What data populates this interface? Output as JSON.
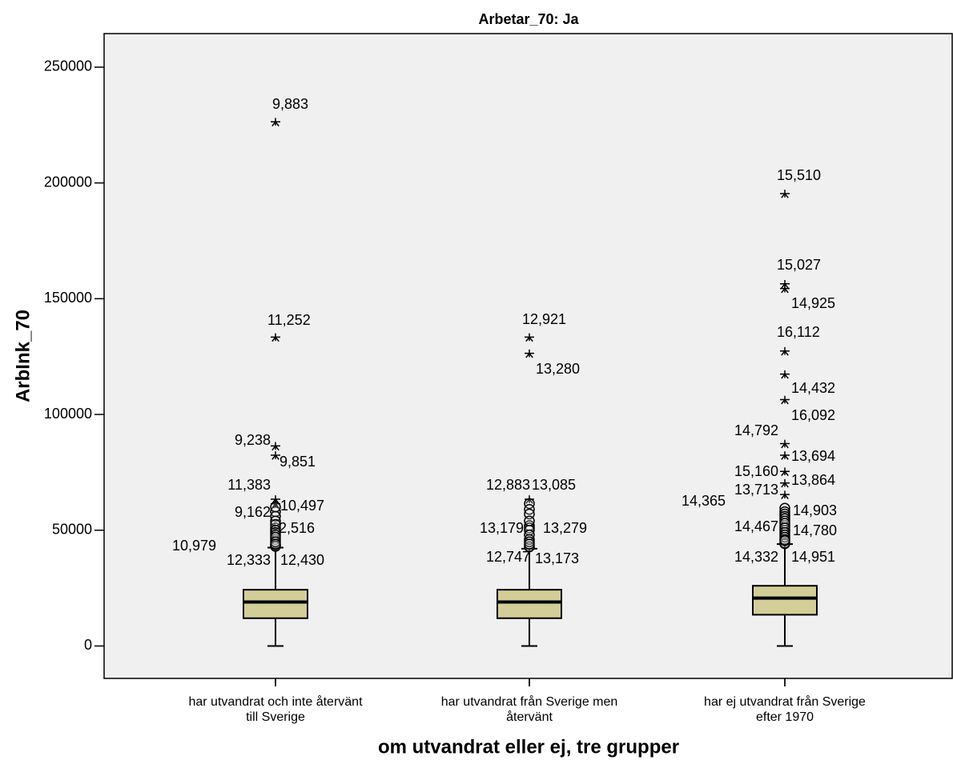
{
  "chart_data": {
    "type": "box",
    "title": "Arbetar_70: Ja",
    "y_label": "ArbInk_70",
    "x_label": "om utvandrat eller ej, tre grupper",
    "categories": [
      [
        "har utvandrat och inte återvänt",
        "till Sverige"
      ],
      [
        "har utvandrat från Sverige men",
        "återvänt"
      ],
      [
        "har ej utvandrat från Sverige",
        "efter 1970"
      ]
    ],
    "color": "#d3ce97",
    "ylim": [
      -14000,
      264500
    ],
    "yticks": [
      0,
      50000,
      100000,
      150000,
      200000,
      250000
    ],
    "boxes": [
      {
        "min": 0,
        "q1": 12000,
        "median": 19000,
        "q3": 24300,
        "max": 42500,
        "outliers": [
          {
            "value": 226000,
            "label": "9,883",
            "marker": "star"
          },
          {
            "value": 133000,
            "label": "11,252",
            "marker": "star"
          },
          {
            "value": 86000,
            "label": "9,238",
            "marker": "star"
          },
          {
            "value": 82000,
            "label": "9,851",
            "marker": "star"
          },
          {
            "value": 63000,
            "label": "11,383",
            "marker": "star"
          },
          {
            "value": 61000,
            "label": "10,497",
            "marker": "star"
          },
          {
            "value": 58000,
            "label": "9,162",
            "marker": "circle"
          },
          {
            "value": 51000,
            "label": "12,516",
            "marker": "circle"
          },
          {
            "value": 46000,
            "label": "10,979",
            "marker": "circle"
          },
          {
            "value": 43500,
            "label": "12,333",
            "marker": "circle"
          },
          {
            "value": 43000,
            "label": "12,430",
            "marker": "circle"
          },
          {
            "value": 60000,
            "marker": "circle"
          },
          {
            "value": 56000,
            "marker": "circle"
          },
          {
            "value": 54000,
            "marker": "circle"
          },
          {
            "value": 52500,
            "marker": "circle"
          },
          {
            "value": 50000,
            "marker": "circle"
          },
          {
            "value": 49000,
            "marker": "circle"
          },
          {
            "value": 48000,
            "marker": "circle"
          },
          {
            "value": 47000,
            "marker": "circle"
          },
          {
            "value": 45000,
            "marker": "circle"
          },
          {
            "value": 44000,
            "marker": "circle"
          }
        ]
      },
      {
        "min": 0,
        "q1": 12000,
        "median": 19000,
        "q3": 24300,
        "max": 42000,
        "outliers": [
          {
            "value": 133000,
            "label": "12,921",
            "marker": "star"
          },
          {
            "value": 126000,
            "label": "13,280",
            "marker": "star"
          },
          {
            "value": 63000,
            "label": "12,883",
            "marker": "star"
          },
          {
            "value": 61500,
            "label": "13,085",
            "marker": "circle"
          },
          {
            "value": 52000,
            "label": "13,179",
            "marker": "circle"
          },
          {
            "value": 51000,
            "label": "13,279",
            "marker": "circle"
          },
          {
            "value": 43000,
            "label": "12,747",
            "marker": "circle"
          },
          {
            "value": 42800,
            "label": "13,173",
            "marker": "circle"
          },
          {
            "value": 59000,
            "marker": "circle"
          },
          {
            "value": 57000,
            "marker": "circle"
          },
          {
            "value": 54000,
            "marker": "circle"
          },
          {
            "value": 50000,
            "marker": "circle"
          },
          {
            "value": 48000,
            "marker": "circle"
          },
          {
            "value": 46000,
            "marker": "circle"
          },
          {
            "value": 45000,
            "marker": "circle"
          },
          {
            "value": 44000,
            "marker": "circle"
          }
        ]
      },
      {
        "min": 0,
        "q1": 13500,
        "median": 20700,
        "q3": 26000,
        "max": 44000,
        "outliers": [
          {
            "value": 195000,
            "label": "15,510",
            "marker": "star"
          },
          {
            "value": 156000,
            "label": "15,027",
            "marker": "star"
          },
          {
            "value": 154000,
            "label": "14,925",
            "marker": "star"
          },
          {
            "value": 127000,
            "label": "16,112",
            "marker": "star"
          },
          {
            "value": 117000,
            "label": "14,432",
            "marker": "star"
          },
          {
            "value": 106000,
            "label": "16,092",
            "marker": "star"
          },
          {
            "value": 87000,
            "label": "14,792",
            "marker": "star"
          },
          {
            "value": 82000,
            "label": "13,694",
            "marker": "star"
          },
          {
            "value": 75000,
            "label": "15,160",
            "marker": "star"
          },
          {
            "value": 70000,
            "label": "13,864",
            "marker": "star"
          },
          {
            "value": 65000,
            "label": "13,713",
            "marker": "star"
          },
          {
            "value": 59500,
            "label": "14,365",
            "marker": "circle"
          },
          {
            "value": 58000,
            "label": "14,903",
            "marker": "circle"
          },
          {
            "value": 52000,
            "label": "14,467",
            "marker": "circle"
          },
          {
            "value": 50000,
            "label": "14,780",
            "marker": "circle"
          },
          {
            "value": 44500,
            "label": "14,332",
            "marker": "circle"
          },
          {
            "value": 44200,
            "label": "14,951",
            "marker": "circle"
          },
          {
            "value": 57000,
            "marker": "circle"
          },
          {
            "value": 56000,
            "marker": "circle"
          },
          {
            "value": 55000,
            "marker": "circle"
          },
          {
            "value": 54000,
            "marker": "circle"
          },
          {
            "value": 53000,
            "marker": "circle"
          },
          {
            "value": 51000,
            "marker": "circle"
          },
          {
            "value": 49000,
            "marker": "circle"
          },
          {
            "value": 48000,
            "marker": "circle"
          },
          {
            "value": 47000,
            "marker": "circle"
          },
          {
            "value": 46000,
            "marker": "circle"
          },
          {
            "value": 45500,
            "marker": "circle"
          }
        ]
      }
    ]
  }
}
